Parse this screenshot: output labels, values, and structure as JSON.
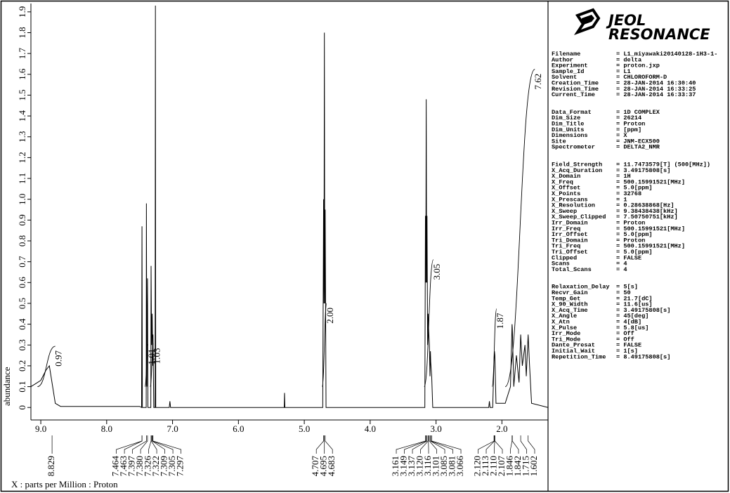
{
  "chart_data": {
    "type": "line",
    "color": "#000000",
    "ylabel": "abundance",
    "xlabel": "X : parts per Million : Proton",
    "xlim": [
      9.15,
      1.3
    ],
    "ylim": [
      -0.06,
      1.94
    ],
    "xticks": [
      {
        "value": 9,
        "label": "9.0"
      },
      {
        "value": 8,
        "label": "8.0"
      },
      {
        "value": 7,
        "label": "7.0"
      },
      {
        "value": 6,
        "label": "6.0"
      },
      {
        "value": 5,
        "label": "5.0"
      },
      {
        "value": 4,
        "label": "4.0"
      },
      {
        "value": 3,
        "label": "3.0"
      },
      {
        "value": 2,
        "label": "2.0"
      }
    ],
    "yticks": [
      0,
      0.1,
      0.2,
      0.3,
      0.4,
      0.5,
      0.6,
      0.7,
      0.8,
      0.9,
      {
        "value": 1,
        "label": "1.0"
      },
      1.1,
      1.2,
      1.3,
      1.4,
      1.5,
      1.6,
      1.7,
      1.8,
      1.9
    ],
    "x": [
      9.15,
      9.0,
      8.92,
      8.87,
      8.83,
      8.78,
      8.7,
      7.5,
      7.47,
      7.464,
      7.458,
      7.4,
      7.397,
      7.39,
      7.38,
      7.374,
      7.33,
      7.326,
      7.318,
      7.309,
      7.3,
      7.297,
      7.285,
      7.265,
      7.26,
      7.255,
      7.05,
      7.04,
      7.03,
      5.305,
      5.3,
      5.295,
      4.72,
      4.707,
      4.701,
      4.695,
      4.689,
      4.683,
      4.67,
      3.17,
      3.161,
      3.155,
      3.149,
      3.143,
      3.137,
      3.128,
      3.12,
      3.116,
      3.101,
      3.092,
      3.085,
      3.081,
      3.066,
      3.05,
      2.2,
      2.19,
      2.18,
      2.14,
      2.12,
      2.113,
      2.11,
      2.107,
      2.09,
      1.95,
      1.87,
      1.846,
      1.842,
      1.82,
      1.78,
      1.74,
      1.715,
      1.69,
      1.65,
      1.63,
      1.602,
      1.58,
      1.55,
      1.3
    ],
    "values": [
      0.1,
      0.13,
      0.18,
      0.2,
      0.12,
      0.02,
      0.005,
      0.005,
      0,
      0.87,
      0,
      0,
      0.98,
      0.1,
      0.62,
      0,
      0,
      0.68,
      0.3,
      0.45,
      0.2,
      0.35,
      0,
      0,
      1.93,
      0,
      0,
      0.03,
      0,
      0,
      0.07,
      0,
      0,
      1.0,
      0.5,
      1.8,
      0.5,
      0.95,
      0,
      0,
      0.92,
      0.6,
      1.48,
      0.6,
      0.92,
      0.3,
      0.45,
      0.4,
      0.3,
      0.15,
      0.27,
      0.22,
      0.15,
      0,
      0,
      0.03,
      0,
      0,
      0.22,
      0.27,
      0.26,
      0.25,
      0.02,
      0.02,
      0.1,
      0.4,
      0.38,
      0.1,
      0.25,
      0.12,
      0.35,
      0.2,
      0.3,
      0.15,
      0.35,
      0.2,
      0.02,
      0
    ],
    "integrals": [
      {
        "value": 0.97,
        "range": [
          9.05,
          8.78
        ]
      },
      {
        "value": 1.01,
        "range": [
          7.42,
          7.37
        ]
      },
      {
        "value": 1.03,
        "range": [
          7.34,
          7.29
        ]
      },
      {
        "value": 2,
        "label": "2.00",
        "range": [
          4.73,
          4.66
        ]
      },
      {
        "value": 3.05,
        "range": [
          3.18,
          3.04
        ]
      },
      {
        "value": 1.87,
        "range": [
          2.15,
          2.08
        ]
      },
      {
        "value": 7.62,
        "range": [
          1.95,
          1.5
        ]
      }
    ],
    "peaks": [
      8.829,
      7.464,
      7.463,
      7.397,
      {
        "value": 7.38,
        "label": "7.380"
      },
      7.326,
      7.322,
      7.309,
      7.305,
      7.297,
      4.707,
      4.695,
      4.683,
      3.161,
      3.149,
      3.137,
      {
        "value": 3.12,
        "label": "3.120"
      },
      3.116,
      3.101,
      3.085,
      3.081,
      3.066,
      {
        "value": 2.12,
        "label": "2.120"
      },
      2.113,
      {
        "value": 2.11,
        "label": "2.110"
      },
      2.107,
      1.846,
      1.842,
      1.715,
      1.602
    ]
  },
  "logo": {
    "line1": "JEOL",
    "line2": "RESONANCE"
  },
  "parameters": [
    [
      [
        "Filename",
        "= L1_miyawaki20140128-1H3-1-"
      ],
      [
        "Author",
        "= delta"
      ],
      [
        "Experiment",
        "= proton.jxp"
      ],
      [
        "Sample_Id",
        "= L1"
      ],
      [
        "Solvent",
        "= CHLOROFORM-D"
      ],
      [
        "Creation_Time",
        "= 28-JAN-2014 16:30:40"
      ],
      [
        "Revision_Time",
        "= 28-JAN-2014 16:33:25"
      ],
      [
        "Current_Time",
        "= 28-JAN-2014 16:33:37"
      ]
    ],
    [
      [
        "Data_Format",
        "= 1D COMPLEX"
      ],
      [
        "Dim_Size",
        "= 26214"
      ],
      [
        "Dim_Title",
        "= Proton"
      ],
      [
        "Dim_Units",
        "= [ppm]"
      ],
      [
        "Dimensions",
        "= X"
      ],
      [
        "Site",
        "= JNM-ECX500"
      ],
      [
        "Spectrometer",
        "= DELTA2_NMR"
      ]
    ],
    [
      [
        "Field_Strength",
        "= 11.7473579[T] (500[MHz])"
      ],
      [
        "X_Acq_Duration",
        "= 3.49175808[s]"
      ],
      [
        "X_Domain",
        "= 1H"
      ],
      [
        "X_Freq",
        "= 500.15991521[MHz]"
      ],
      [
        "X_Offset",
        "= 5.0[ppm]"
      ],
      [
        "X_Points",
        "= 32768"
      ],
      [
        "X_Prescans",
        "= 1"
      ],
      [
        "X_Resolution",
        "= 0.28638868[Hz]"
      ],
      [
        "X_Sweep",
        "= 9.38438438[kHz]"
      ],
      [
        "X_Sweep_Clipped",
        "= 7.50750751[kHz]"
      ],
      [
        "Irr_Domain",
        "= Proton"
      ],
      [
        "Irr_Freq",
        "= 500.15991521[MHz]"
      ],
      [
        "Irr_Offset",
        "= 5.0[ppm]"
      ],
      [
        "Tri_Domain",
        "= Proton"
      ],
      [
        "Tri_Freq",
        "= 500.15991521[MHz]"
      ],
      [
        "Tri_Offset",
        "= 5.0[ppm]"
      ],
      [
        "Clipped",
        "= FALSE"
      ],
      [
        "Scans",
        "= 4"
      ],
      [
        "Total_Scans",
        "= 4"
      ]
    ],
    [
      [
        "Relaxation_Delay",
        "= 5[s]"
      ],
      [
        "Recvr_Gain",
        "= 50"
      ],
      [
        "Temp_Get",
        "= 21.7[dC]"
      ],
      [
        "X_90_Width",
        "= 11.6[us]"
      ],
      [
        "X_Acq_Time",
        "= 3.49175808[s]"
      ],
      [
        "X_Angle",
        "= 45[deg]"
      ],
      [
        "X_Atn",
        "= 4[dB]"
      ],
      [
        "X_Pulse",
        "= 5.8[us]"
      ],
      [
        "Irr_Mode",
        "= Off"
      ],
      [
        "Tri_Mode",
        "= Off"
      ],
      [
        "Dante_Presat",
        "= FALSE"
      ],
      [
        "Initial_Wait",
        "= 1[s]"
      ],
      [
        "Repetition_Time",
        "= 8.49175808[s]"
      ]
    ]
  ]
}
